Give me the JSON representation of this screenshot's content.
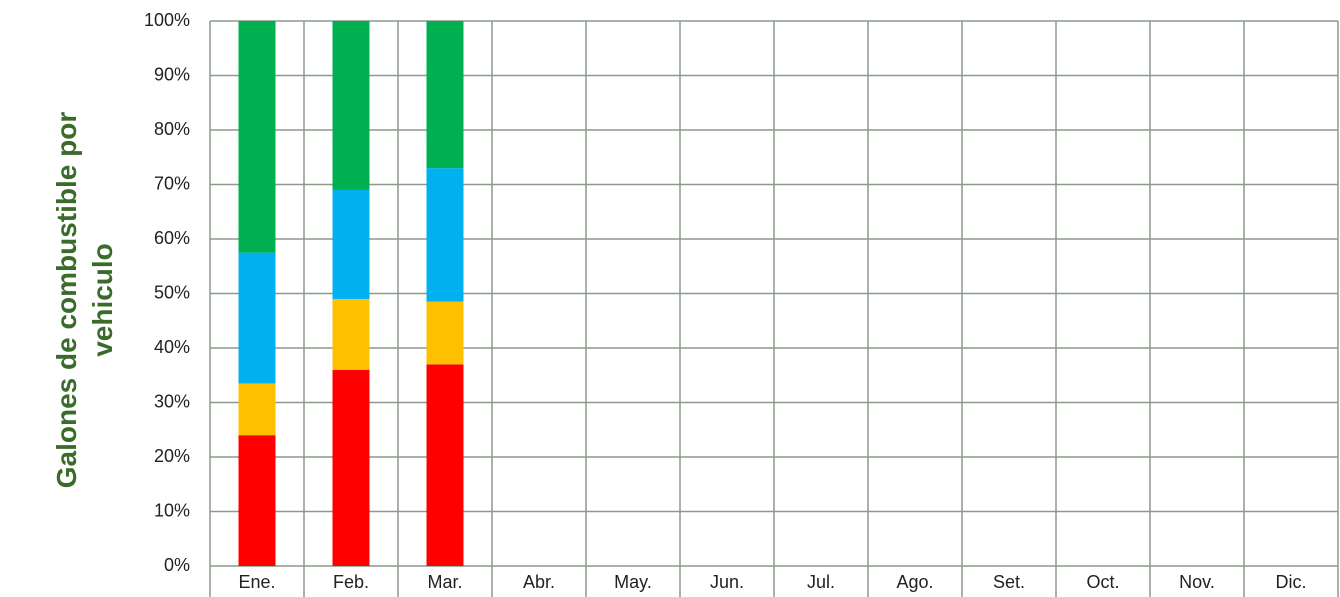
{
  "chart_data": {
    "type": "stacked_bar",
    "ylabel": "Galones de combustible por vehiculo",
    "categories": [
      "Ene.",
      "Feb.",
      "Mar.",
      "Abr.",
      "May.",
      "Jun.",
      "Jul.",
      "Ago.",
      "Set.",
      "Oct.",
      "Nov.",
      "Dic."
    ],
    "series": [
      {
        "color": "#ff0000",
        "values": [
          24,
          36,
          37,
          null,
          null,
          null,
          null,
          null,
          null,
          null,
          null,
          null
        ]
      },
      {
        "color": "#ffc000",
        "values": [
          9.5,
          13,
          11.5,
          null,
          null,
          null,
          null,
          null,
          null,
          null,
          null,
          null
        ]
      },
      {
        "color": "#00b0f0",
        "values": [
          24,
          20,
          24.5,
          null,
          null,
          null,
          null,
          null,
          null,
          null,
          null,
          null
        ]
      },
      {
        "color": "#00b050",
        "values": [
          42.5,
          31,
          27,
          null,
          null,
          null,
          null,
          null,
          null,
          null,
          null,
          null
        ]
      }
    ],
    "ylim": [
      0,
      100
    ],
    "yticks": [
      {
        "value": 0,
        "label": "0%"
      },
      {
        "value": 10,
        "label": "10%"
      },
      {
        "value": 20,
        "label": "20%"
      },
      {
        "value": 30,
        "label": "30%"
      },
      {
        "value": 40,
        "label": "40%"
      },
      {
        "value": 50,
        "label": "50%"
      },
      {
        "value": 60,
        "label": "60%"
      },
      {
        "value": 70,
        "label": "70%"
      },
      {
        "value": 80,
        "label": "80%"
      },
      {
        "value": 90,
        "label": "90%"
      },
      {
        "value": 100,
        "label": "100%"
      }
    ],
    "grid": true
  }
}
